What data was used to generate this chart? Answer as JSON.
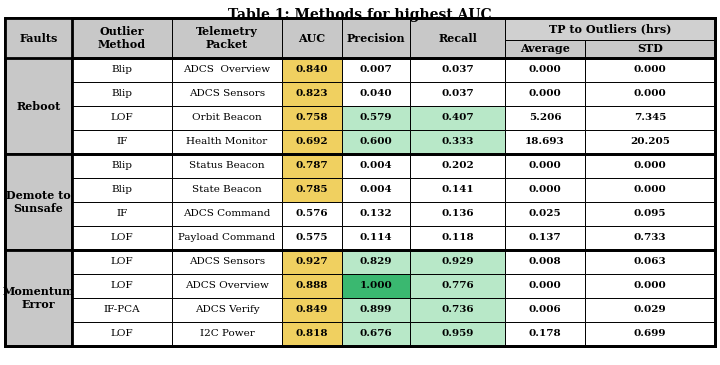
{
  "title": "Table 1: Methods for highest AUC",
  "tp_header": "TP to Outliers (hrs)",
  "groups": [
    {
      "label": "Reboot",
      "rows": [
        [
          "Blip",
          "ADCS  Overview",
          "0.840",
          "0.007",
          "0.037",
          "0.000",
          "0.000"
        ],
        [
          "Blip",
          "ADCS Sensors",
          "0.823",
          "0.040",
          "0.037",
          "0.000",
          "0.000"
        ],
        [
          "LOF",
          "Orbit Beacon",
          "0.758",
          "0.579",
          "0.407",
          "5.206",
          "7.345"
        ],
        [
          "IF",
          "Health Monitor",
          "0.692",
          "0.600",
          "0.333",
          "18.693",
          "20.205"
        ]
      ],
      "auc_colors": [
        "#f0d060",
        "#f0d060",
        "#f0d060",
        "#f0d060"
      ],
      "precision_colors": [
        "#ffffff",
        "#ffffff",
        "#b8e8c8",
        "#b8e8c8"
      ],
      "recall_colors": [
        "#ffffff",
        "#ffffff",
        "#b8e8c8",
        "#b8e8c8"
      ]
    },
    {
      "label": "Demote to\nSunsafe",
      "rows": [
        [
          "Blip",
          "Status Beacon",
          "0.787",
          "0.004",
          "0.202",
          "0.000",
          "0.000"
        ],
        [
          "Blip",
          "State Beacon",
          "0.785",
          "0.004",
          "0.141",
          "0.000",
          "0.000"
        ],
        [
          "IF",
          "ADCS Command",
          "0.576",
          "0.132",
          "0.136",
          "0.025",
          "0.095"
        ],
        [
          "LOF",
          "Payload Command",
          "0.575",
          "0.114",
          "0.118",
          "0.137",
          "0.733"
        ]
      ],
      "auc_colors": [
        "#f0d060",
        "#f0d060",
        "#ffffff",
        "#ffffff"
      ],
      "precision_colors": [
        "#ffffff",
        "#ffffff",
        "#ffffff",
        "#ffffff"
      ],
      "recall_colors": [
        "#ffffff",
        "#ffffff",
        "#ffffff",
        "#ffffff"
      ]
    },
    {
      "label": "Momentum\nError",
      "rows": [
        [
          "LOF",
          "ADCS Sensors",
          "0.927",
          "0.829",
          "0.929",
          "0.008",
          "0.063"
        ],
        [
          "LOF",
          "ADCS Overview",
          "0.888",
          "1.000",
          "0.776",
          "0.000",
          "0.000"
        ],
        [
          "IF-PCA",
          "ADCS Verify",
          "0.849",
          "0.899",
          "0.736",
          "0.006",
          "0.029"
        ],
        [
          "LOF",
          "I2C Power",
          "0.818",
          "0.676",
          "0.959",
          "0.178",
          "0.699"
        ]
      ],
      "auc_colors": [
        "#f0d060",
        "#f0d060",
        "#f0d060",
        "#f0d060"
      ],
      "precision_colors": [
        "#b8e8c8",
        "#3ab870",
        "#b8e8c8",
        "#b8e8c8"
      ],
      "recall_colors": [
        "#b8e8c8",
        "#b8e8c8",
        "#b8e8c8",
        "#b8e8c8"
      ]
    }
  ],
  "header_bg": "#c8c8c8",
  "fault_bg": "#c8c8c8",
  "tp_bg": "#d0d0d0",
  "border_color": "#000000",
  "thick_lw": 2.0,
  "thin_lw": 0.7,
  "title_fontsize": 10,
  "header_fontsize": 8,
  "data_fontsize": 7.5
}
